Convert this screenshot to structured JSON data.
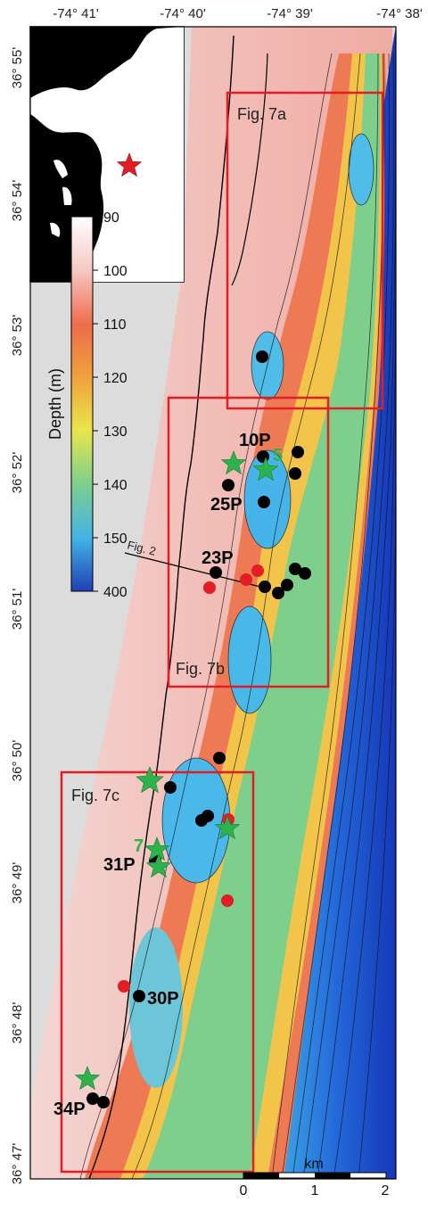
{
  "top_axis_labels": [
    "-74° 41'",
    "-74° 40'",
    "-74° 39'",
    "-74° 38'"
  ],
  "left_axis_labels": [
    "36° 55'",
    "36° 54'",
    "36° 53'",
    "36° 52'",
    "36° 51'",
    "36° 50'",
    "36° 49'",
    "36° 48'",
    "36° 47'"
  ],
  "colorbar": {
    "title": "Depth (m)",
    "ticks": [
      "90",
      "100",
      "110",
      "120",
      "130",
      "140",
      "150",
      "400"
    ]
  },
  "figure_boxes": [
    "Fig. 7a",
    "Fig. 7b",
    "Fig. 7c"
  ],
  "profile_line_label": "Fig. 2",
  "site_labels": [
    "10P",
    "25P",
    "23P",
    "31P",
    "30P",
    "34P"
  ],
  "star_labels": [
    "5",
    "7"
  ],
  "scale_bar": {
    "unit": "km",
    "ticks": [
      "0",
      "1",
      "2"
    ]
  },
  "colors": {
    "frame_red": "#e31d24",
    "star_green": "#2db34a",
    "marker_red": "#e31d24",
    "marker_black": "#000000",
    "nodata_gray": "#dcdcdc"
  },
  "icons": [
    "location-star-icon",
    "green-star-icon",
    "black-site-marker",
    "red-site-marker"
  ]
}
